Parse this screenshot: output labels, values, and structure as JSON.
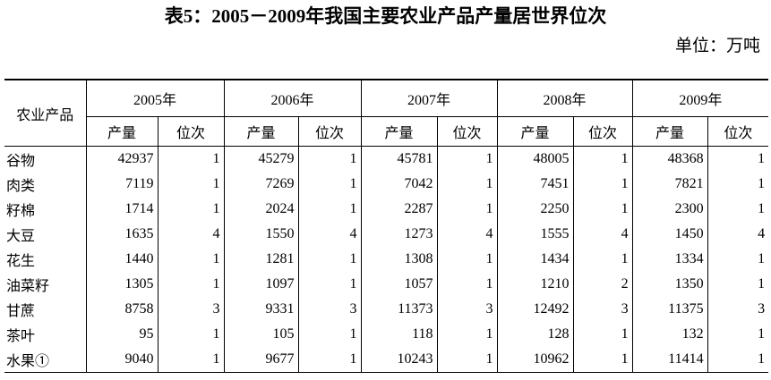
{
  "title": "表5：2005－2009年我国主要农业产品产量居世界位次",
  "unit": "单位：万吨",
  "table": {
    "header": {
      "first": "农业产品",
      "years": [
        "2005年",
        "2006年",
        "2007年",
        "2008年",
        "2009年"
      ],
      "subheaders": [
        "产量",
        "位次",
        "产量",
        "位次",
        "产量",
        "位次",
        "产量",
        "位次",
        "产量",
        "位次"
      ]
    },
    "rows": [
      [
        "谷物",
        42937,
        1,
        45279,
        1,
        45781,
        1,
        48005,
        1,
        48368,
        1
      ],
      [
        "肉类",
        7119,
        1,
        7269,
        1,
        7042,
        1,
        7451,
        1,
        7821,
        1
      ],
      [
        "籽棉",
        1714,
        1,
        2024,
        1,
        2287,
        1,
        2250,
        1,
        2300,
        1
      ],
      [
        "大豆",
        1635,
        4,
        1550,
        4,
        1273,
        4,
        1555,
        4,
        1450,
        4
      ],
      [
        "花生",
        1440,
        1,
        1281,
        1,
        1308,
        1,
        1434,
        1,
        1334,
        1
      ],
      [
        "油菜籽",
        1305,
        1,
        1097,
        1,
        1057,
        1,
        1210,
        2,
        1350,
        1
      ],
      [
        "甘蔗",
        8758,
        3,
        9331,
        3,
        11373,
        3,
        12492,
        3,
        11375,
        3
      ],
      [
        "茶叶",
        95,
        1,
        105,
        1,
        118,
        1,
        128,
        1,
        132,
        1
      ],
      [
        "水果①",
        9040,
        1,
        9677,
        1,
        10243,
        1,
        10962,
        1,
        11414,
        1
      ]
    ]
  }
}
